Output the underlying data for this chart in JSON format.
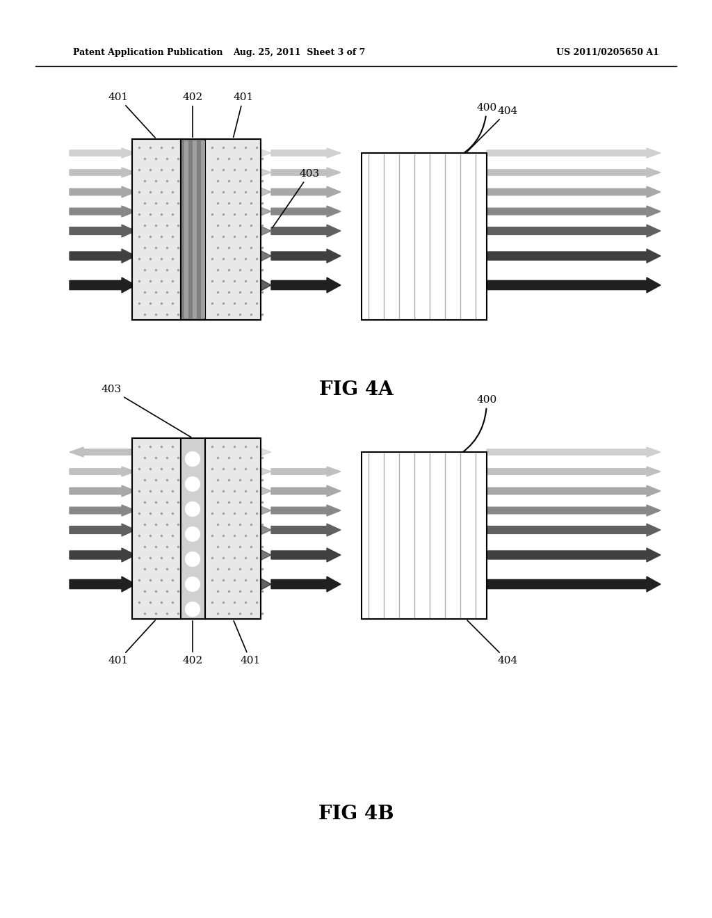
{
  "header_left": "Patent Application Publication",
  "header_mid": "Aug. 25, 2011  Sheet 3 of 7",
  "header_right": "US 2011/0205650 A1",
  "fig4a_label": "FIG 4A",
  "fig4b_label": "FIG 4B",
  "background_color": "#ffffff"
}
